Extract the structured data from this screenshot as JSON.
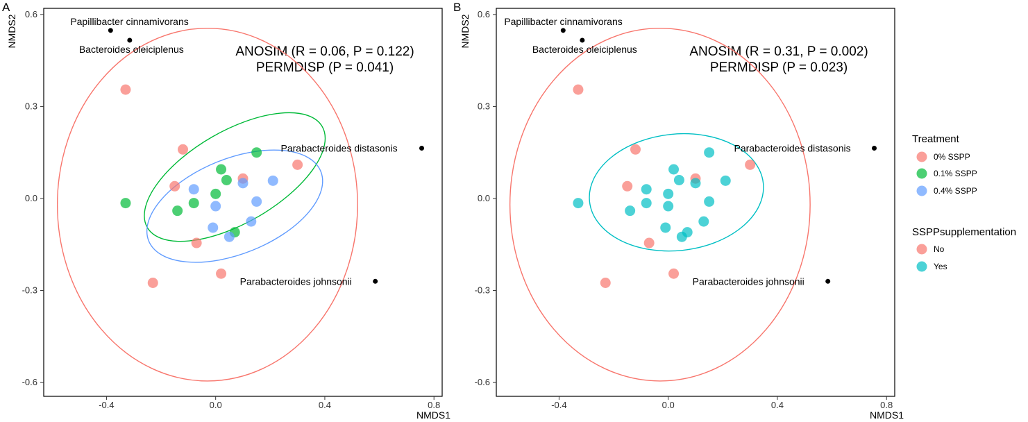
{
  "panels": [
    {
      "letter": "A",
      "stat_line1": "ANOSIM (R = 0.06, P = 0.122)",
      "stat_line2": "PERMDISP (P = 0.041)"
    },
    {
      "letter": "B",
      "stat_line1": "ANOSIM (R = 0.31, P = 0.002)",
      "stat_line2": "PERMDISP (P = 0.023)"
    }
  ],
  "legend": {
    "treatment": {
      "title": "Treatment",
      "items": [
        {
          "label": "0% SSPP",
          "color": "#F8766D"
        },
        {
          "label": "0.1% SSPP",
          "color": "#00BA38"
        },
        {
          "label": "0.4% SSPP",
          "color": "#619CFF"
        }
      ]
    },
    "supplementation": {
      "title": "SSPPsupplementation",
      "items": [
        {
          "label": "No",
          "color": "#F8766D"
        },
        {
          "label": "Yes",
          "color": "#00BFC4"
        }
      ]
    }
  },
  "chart_data": [
    {
      "type": "scatter",
      "title": "",
      "xlabel": "NMDS1",
      "ylabel": "NMDS2",
      "xlim": [
        -0.63,
        0.83
      ],
      "ylim": [
        -0.645,
        0.62
      ],
      "xticks": [
        -0.4,
        0.0,
        0.4,
        0.8
      ],
      "xtick_labels": [
        "-0.4",
        "0.0",
        "0.4",
        "0.8"
      ],
      "yticks": [
        -0.6,
        -0.3,
        0.0,
        0.3,
        0.6
      ],
      "ytick_labels": [
        "-0.6",
        "-0.3",
        "0.0",
        "0.3",
        "0.6"
      ],
      "grid": false,
      "legend_position": "right",
      "series": [
        {
          "name": "0% SSPP",
          "color": "#F8766D",
          "points": [
            [
              -0.33,
              0.355
            ],
            [
              -0.12,
              0.16
            ],
            [
              -0.15,
              0.04
            ],
            [
              -0.07,
              -0.145
            ],
            [
              -0.23,
              -0.275
            ],
            [
              0.02,
              -0.245
            ],
            [
              0.1,
              0.065
            ],
            [
              0.3,
              0.11
            ]
          ]
        },
        {
          "name": "0.1% SSPP",
          "color": "#00BA38",
          "points": [
            [
              -0.33,
              -0.015
            ],
            [
              -0.14,
              -0.04
            ],
            [
              -0.08,
              -0.015
            ],
            [
              0.02,
              0.095
            ],
            [
              0.0,
              0.015
            ],
            [
              0.04,
              0.06
            ],
            [
              0.15,
              0.15
            ],
            [
              0.07,
              -0.11
            ]
          ]
        },
        {
          "name": "0.4% SSPP",
          "color": "#619CFF",
          "points": [
            [
              -0.08,
              0.03
            ],
            [
              0.0,
              -0.025
            ],
            [
              -0.01,
              -0.095
            ],
            [
              0.05,
              -0.125
            ],
            [
              0.1,
              0.05
            ],
            [
              0.15,
              -0.01
            ],
            [
              0.21,
              0.058
            ],
            [
              0.13,
              -0.075
            ]
          ]
        }
      ],
      "ellipses": [
        {
          "series": "0% SSPP",
          "cx": -0.03,
          "cy": -0.02,
          "rx": 0.55,
          "ry": 0.575,
          "angle_deg": 0
        },
        {
          "series": "0.1% SSPP",
          "cx": 0.07,
          "cy": 0.07,
          "rx": 0.37,
          "ry": 0.15,
          "angle_deg": 30
        },
        {
          "series": "0.4% SSPP",
          "cx": 0.07,
          "cy": -0.025,
          "rx": 0.34,
          "ry": 0.155,
          "angle_deg": 22
        }
      ],
      "species": [
        {
          "label": "Papillibacter cinnamivorans",
          "x": -0.385,
          "y": 0.548
        },
        {
          "label": "Bacteroides oleiciplenus",
          "x": -0.315,
          "y": 0.516
        },
        {
          "label": "Parabacteroides distasonis",
          "x": 0.755,
          "y": 0.164
        },
        {
          "label": "Parabacteroides johnsonii",
          "x": 0.585,
          "y": -0.27
        }
      ]
    },
    {
      "type": "scatter",
      "title": "",
      "xlabel": "NMDS1",
      "ylabel": "NMDS2",
      "xlim": [
        -0.63,
        0.83
      ],
      "ylim": [
        -0.645,
        0.62
      ],
      "xticks": [
        -0.4,
        0.0,
        0.4,
        0.8
      ],
      "xtick_labels": [
        "-0.4",
        "0.0",
        "0.4",
        "0.8"
      ],
      "yticks": [
        -0.6,
        -0.3,
        0.0,
        0.3,
        0.6
      ],
      "ytick_labels": [
        "-0.6",
        "-0.3",
        "0.0",
        "0.3",
        "0.6"
      ],
      "grid": false,
      "legend_position": "right",
      "series": [
        {
          "name": "No",
          "color": "#F8766D",
          "points": [
            [
              -0.33,
              0.355
            ],
            [
              -0.12,
              0.16
            ],
            [
              -0.15,
              0.04
            ],
            [
              -0.07,
              -0.145
            ],
            [
              -0.23,
              -0.275
            ],
            [
              0.02,
              -0.245
            ],
            [
              0.1,
              0.065
            ],
            [
              0.3,
              0.11
            ]
          ]
        },
        {
          "name": "Yes",
          "color": "#00BFC4",
          "points": [
            [
              -0.33,
              -0.015
            ],
            [
              -0.14,
              -0.04
            ],
            [
              -0.08,
              -0.015
            ],
            [
              0.02,
              0.095
            ],
            [
              0.0,
              0.015
            ],
            [
              0.04,
              0.06
            ],
            [
              0.15,
              0.15
            ],
            [
              0.07,
              -0.11
            ],
            [
              -0.08,
              0.03
            ],
            [
              0.0,
              -0.025
            ],
            [
              -0.01,
              -0.095
            ],
            [
              0.05,
              -0.125
            ],
            [
              0.1,
              0.05
            ],
            [
              0.15,
              -0.01
            ],
            [
              0.21,
              0.058
            ],
            [
              0.13,
              -0.075
            ]
          ]
        }
      ],
      "ellipses": [
        {
          "series": "No",
          "cx": -0.03,
          "cy": -0.02,
          "rx": 0.55,
          "ry": 0.575,
          "angle_deg": 0
        },
        {
          "series": "Yes",
          "cx": 0.03,
          "cy": 0.02,
          "rx": 0.32,
          "ry": 0.19,
          "angle_deg": 6
        }
      ],
      "species": [
        {
          "label": "Papillibacter cinnamivorans",
          "x": -0.385,
          "y": 0.548
        },
        {
          "label": "Bacteroides oleiciplenus",
          "x": -0.315,
          "y": 0.516
        },
        {
          "label": "Parabacteroides distasonis",
          "x": 0.755,
          "y": 0.164
        },
        {
          "label": "Parabacteroides johnsonii",
          "x": 0.585,
          "y": -0.27
        }
      ]
    }
  ]
}
